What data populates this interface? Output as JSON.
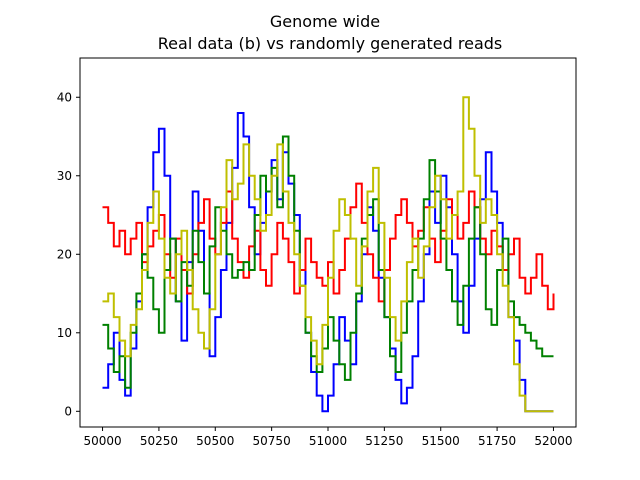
{
  "chart_data": {
    "type": "line",
    "title": "Genome wide",
    "subtitle": "Real data (b) vs randomly generated reads",
    "xlabel": "",
    "ylabel": "",
    "xlim": [
      49900,
      52100
    ],
    "ylim": [
      -2,
      45
    ],
    "xticks": [
      50000,
      50250,
      50500,
      50750,
      51000,
      51250,
      51500,
      51750,
      52000
    ],
    "yticks": [
      0,
      10,
      20,
      30,
      40
    ],
    "x": [
      50000,
      50025,
      50050,
      50075,
      50100,
      50125,
      50150,
      50175,
      50200,
      50225,
      50250,
      50275,
      50300,
      50325,
      50350,
      50375,
      50400,
      50425,
      50450,
      50475,
      50500,
      50525,
      50550,
      50575,
      50600,
      50625,
      50650,
      50675,
      50700,
      50725,
      50750,
      50775,
      50800,
      50825,
      50850,
      50875,
      50900,
      50925,
      50950,
      50975,
      51000,
      51025,
      51050,
      51075,
      51100,
      51125,
      51150,
      51175,
      51200,
      51225,
      51250,
      51275,
      51300,
      51325,
      51350,
      51375,
      51400,
      51425,
      51450,
      51475,
      51500,
      51525,
      51550,
      51575,
      51600,
      51625,
      51650,
      51675,
      51700,
      51725,
      51750,
      51775,
      51800,
      51825,
      51850,
      51875,
      51900,
      51925,
      51950,
      51975,
      52000
    ],
    "series": [
      {
        "name": "blue",
        "color": "#0000ff",
        "values": [
          3,
          6,
          10,
          4,
          2,
          8,
          14,
          20,
          26,
          33,
          36,
          30,
          22,
          14,
          9,
          19,
          28,
          23,
          15,
          7,
          12,
          18,
          24,
          31,
          38,
          35,
          26,
          20,
          24,
          28,
          32,
          27,
          33,
          29,
          25,
          18,
          10,
          5,
          2,
          0,
          2,
          6,
          12,
          9,
          6,
          14,
          20,
          26,
          23,
          17,
          12,
          8,
          4,
          1,
          3,
          7,
          14,
          20,
          28,
          24,
          30,
          26,
          20,
          14,
          10,
          16,
          22,
          27,
          33,
          28,
          24,
          18,
          12,
          9,
          4,
          0,
          0,
          0,
          0,
          0,
          0
        ]
      },
      {
        "name": "red",
        "color": "#ff0000",
        "values": [
          26,
          24,
          21,
          23,
          20,
          22,
          24,
          19,
          21,
          23,
          25,
          20,
          17,
          22,
          18,
          15,
          20,
          24,
          27,
          22,
          20,
          24,
          28,
          22,
          19,
          17,
          21,
          23,
          18,
          16,
          20,
          24,
          22,
          19,
          15,
          18,
          22,
          19,
          17,
          16,
          19,
          15,
          18,
          22,
          26,
          29,
          24,
          20,
          17,
          14,
          18,
          22,
          25,
          27,
          24,
          21,
          23,
          26,
          22,
          19,
          23,
          27,
          25,
          22,
          24,
          28,
          26,
          22,
          20,
          23,
          21,
          18,
          20,
          22,
          17,
          15,
          17,
          20,
          16,
          13,
          15
        ]
      },
      {
        "name": "green",
        "color": "#008000",
        "values": [
          11,
          8,
          5,
          7,
          3,
          10,
          15,
          20,
          17,
          13,
          10,
          18,
          22,
          14,
          19,
          16,
          23,
          19,
          15,
          21,
          26,
          23,
          20,
          17,
          18,
          19,
          18,
          25,
          30,
          28,
          31,
          26,
          35,
          30,
          23,
          16,
          10,
          7,
          5,
          8,
          12,
          9,
          6,
          4,
          10,
          15,
          22,
          25,
          27,
          18,
          12,
          7,
          5,
          10,
          14,
          18,
          22,
          27,
          32,
          28,
          22,
          18,
          14,
          11,
          16,
          22,
          26,
          20,
          13,
          11,
          18,
          22,
          14,
          12,
          11,
          10,
          9,
          8,
          7,
          7,
          7
        ]
      },
      {
        "name": "yellow",
        "color": "#bfbf00",
        "values": [
          14,
          15,
          12,
          9,
          7,
          11,
          13,
          18,
          24,
          28,
          22,
          17,
          15,
          20,
          23,
          18,
          13,
          10,
          8,
          13,
          20,
          26,
          32,
          27,
          29,
          34,
          30,
          27,
          23,
          25,
          30,
          34,
          28,
          24,
          20,
          16,
          12,
          9,
          6,
          11,
          17,
          23,
          27,
          25,
          22,
          16,
          21,
          28,
          31,
          24,
          17,
          12,
          9,
          14,
          19,
          22,
          17,
          21,
          26,
          30,
          27,
          22,
          25,
          28,
          40,
          36,
          30,
          24,
          27,
          25,
          20,
          16,
          12,
          6,
          2,
          0,
          0,
          0,
          0,
          0,
          0
        ]
      }
    ]
  }
}
